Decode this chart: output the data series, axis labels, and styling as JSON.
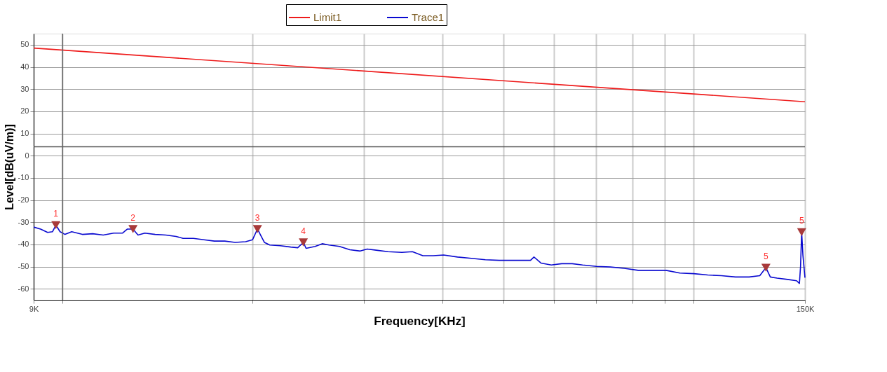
{
  "chart_data": {
    "type": "line",
    "xlabel": "Frequency[KHz]",
    "ylabel": "Level[dB(uV/m)]",
    "log": "x",
    "grid": true,
    "legend": "top",
    "marker": "none",
    "line_style": "solid",
    "xlim": [
      9,
      150
    ],
    "ylim": [
      -65,
      55
    ],
    "xticks": [
      {
        "value": 9,
        "label": "9K"
      },
      {
        "value": 10,
        "label": null
      },
      {
        "value": 20,
        "label": null
      },
      {
        "value": 30,
        "label": null
      },
      {
        "value": 40,
        "label": null
      },
      {
        "value": 50,
        "label": null
      },
      {
        "value": 60,
        "label": null
      },
      {
        "value": 70,
        "label": null
      },
      {
        "value": 80,
        "label": null
      },
      {
        "value": 90,
        "label": null
      },
      {
        "value": 100,
        "label": null
      },
      {
        "value": 150,
        "label": "150K"
      }
    ],
    "yticks": [
      -60,
      -50,
      -40,
      -30,
      -20,
      -10,
      0,
      10,
      20,
      30,
      40,
      50
    ],
    "series": [
      {
        "name": "Limit1",
        "color": "#ee1c1c",
        "x": [
          9,
          150
        ],
        "values": [
          48.5,
          24.3
        ]
      },
      {
        "name": "Trace1",
        "color": "#0a0ad0",
        "x": [
          9.0,
          9.23,
          9.47,
          9.64,
          9.76,
          9.91,
          10.09,
          10.34,
          10.75,
          11.16,
          11.6,
          12.05,
          12.45,
          12.67,
          12.93,
          13.17,
          13.5,
          14.02,
          14.57,
          15.13,
          15.52,
          16.12,
          16.75,
          17.4,
          18.07,
          18.77,
          19.5,
          20.0,
          20.36,
          20.67,
          20.88,
          21.3,
          22.13,
          22.99,
          23.58,
          24.07,
          24.31,
          25.13,
          25.78,
          26.44,
          27.46,
          28.52,
          29.62,
          30.38,
          31.55,
          32.78,
          34.48,
          35.83,
          37.22,
          38.66,
          40.15,
          42.24,
          44.42,
          46.75,
          49.18,
          51.72,
          55.12,
          55.82,
          57.25,
          59.46,
          61.77,
          64.17,
          66.65,
          70.12,
          73.76,
          77.6,
          81.63,
          85.87,
          90.35,
          95.04,
          99.98,
          105.2,
          110.6,
          116.4,
          122.4,
          127.2,
          130.1,
          132.2,
          135.5,
          140.8,
          145.5,
          147.0,
          147.6,
          148.2,
          148.9,
          150
        ],
        "values": [
          -32.2,
          -33.1,
          -34.6,
          -34.3,
          -31.3,
          -34.3,
          -35.5,
          -34.3,
          -35.5,
          -35.2,
          -35.8,
          -34.9,
          -34.9,
          -33.1,
          -33.1,
          -35.8,
          -34.9,
          -35.5,
          -35.8,
          -36.4,
          -37.3,
          -37.3,
          -37.9,
          -38.5,
          -38.5,
          -39.1,
          -38.8,
          -37.9,
          -33.1,
          -36.7,
          -39.1,
          -40.3,
          -40.6,
          -41.2,
          -41.5,
          -39.1,
          -41.8,
          -40.9,
          -39.7,
          -40.3,
          -40.9,
          -42.4,
          -43.0,
          -42.1,
          -42.7,
          -43.3,
          -43.6,
          -43.3,
          -45.1,
          -45.1,
          -44.8,
          -45.7,
          -46.3,
          -46.9,
          -47.2,
          -47.2,
          -47.2,
          -45.7,
          -48.4,
          -49.3,
          -48.7,
          -48.7,
          -49.3,
          -49.9,
          -50.2,
          -50.8,
          -51.7,
          -51.7,
          -51.7,
          -52.9,
          -53.2,
          -53.8,
          -54.1,
          -54.7,
          -54.7,
          -54.1,
          -50.5,
          -54.7,
          -55.2,
          -55.8,
          -56.4,
          -57.6,
          -50.0,
          -34.5,
          -45.0,
          -55.0
        ]
      },
      {
        "type": "scatter",
        "marker": "triangle",
        "color": "#a83a3a",
        "x": [
          9.76,
          12.93,
          20.36,
          24.07,
          130.1,
          148.2
        ],
        "values": [
          -31.3,
          -33.1,
          -33.1,
          -39.1,
          -50.5,
          -34.5
        ]
      }
    ],
    "annotations": [
      {
        "text": "1",
        "x": 9.76,
        "y": -31.3
      },
      {
        "text": "2",
        "x": 12.93,
        "y": -33.1
      },
      {
        "text": "3",
        "x": 20.36,
        "y": -33.1
      },
      {
        "text": "4",
        "x": 24.07,
        "y": -39.1
      },
      {
        "text": "5",
        "x": 130.1,
        "y": -50.5
      },
      {
        "text": "5",
        "x": 148.2,
        "y": -34.5
      }
    ],
    "ref_lines": [
      {
        "axis": "y",
        "value": 4,
        "label": null,
        "color": "#555555"
      },
      {
        "axis": "x",
        "value": 10,
        "label": null,
        "color": "#666666"
      }
    ]
  }
}
